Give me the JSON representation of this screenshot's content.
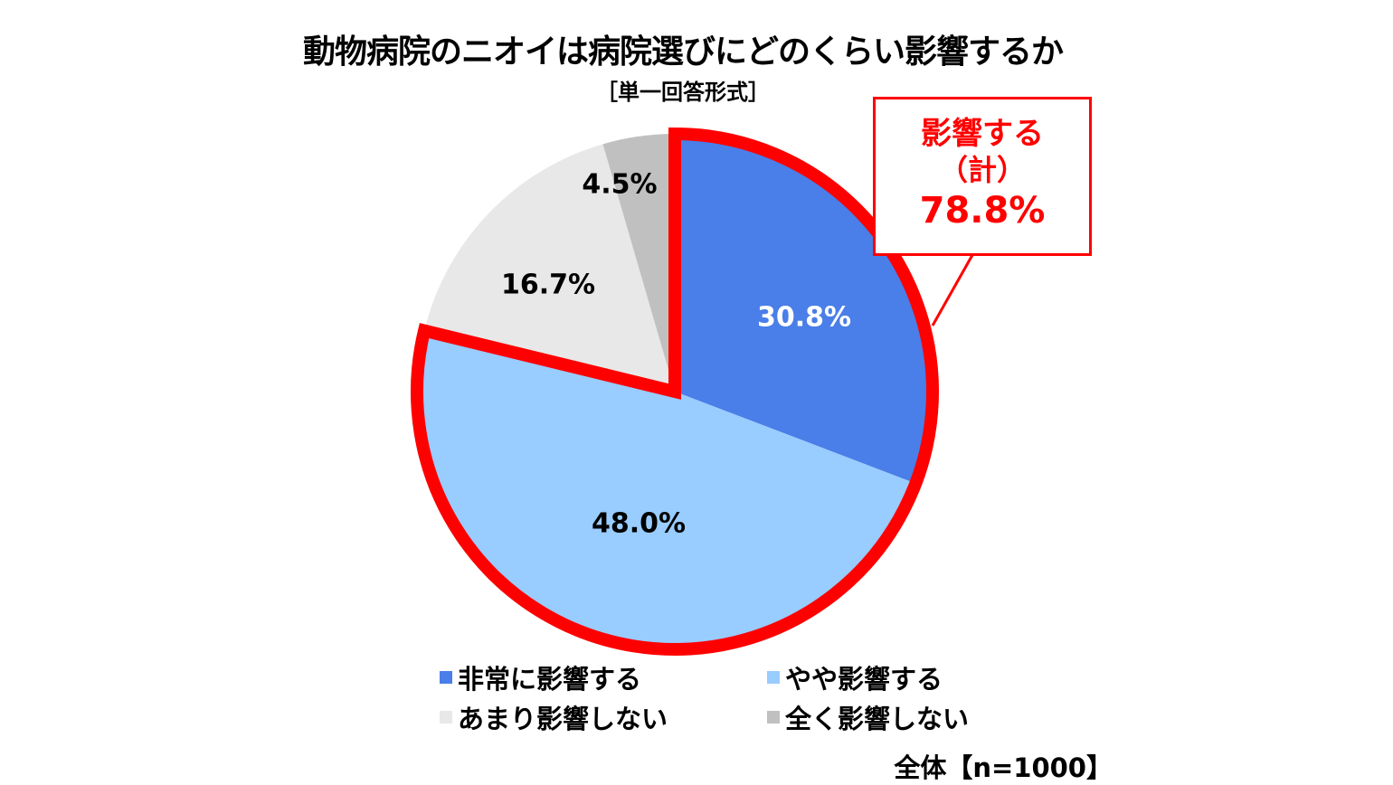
{
  "title": "動物病院のニオイは病院選びにどのくらい影響するか",
  "subtitle": "［単一回答形式］",
  "callout": {
    "line1": "影響する",
    "line2": "（計）",
    "line3": "78.8%",
    "color": "#ff0000"
  },
  "legend": [
    {
      "label": "非常に影響する",
      "color": "#4a7ee8"
    },
    {
      "label": "やや影響する",
      "color": "#99ccff"
    },
    {
      "label": "あまり影響しない",
      "color": "#e8e8e8"
    },
    {
      "label": "全く影響しない",
      "color": "#c0c0c0"
    }
  ],
  "sample": "全体【n=1000】",
  "slices": [
    {
      "label": "30.8%",
      "color": "#4a7ee8",
      "text_color": "#ffffff"
    },
    {
      "label": "48.0%",
      "color": "#99ccff",
      "text_color": "#000000"
    },
    {
      "label": "16.7%",
      "color": "#e8e8e8",
      "text_color": "#000000"
    },
    {
      "label": "4.5%",
      "color": "#c0c0c0",
      "text_color": "#000000"
    }
  ],
  "chart_data": {
    "type": "pie",
    "title": "動物病院のニオイは病院選びにどのくらい影響するか",
    "subtitle": "［単一回答形式］",
    "categories": [
      "非常に影響する",
      "やや影響する",
      "あまり影響しない",
      "全く影響しない"
    ],
    "values": [
      30.8,
      48.0,
      16.7,
      4.5
    ],
    "unit": "%",
    "start_angle": "12 o'clock, clockwise",
    "highlight": {
      "categories": [
        "非常に影響する",
        "やや影響する"
      ],
      "label": "影響する（計）",
      "value": 78.8,
      "outline_color": "#ff0000"
    },
    "legend_position": "bottom",
    "n": 1000,
    "note": "全体【n=1000】"
  }
}
